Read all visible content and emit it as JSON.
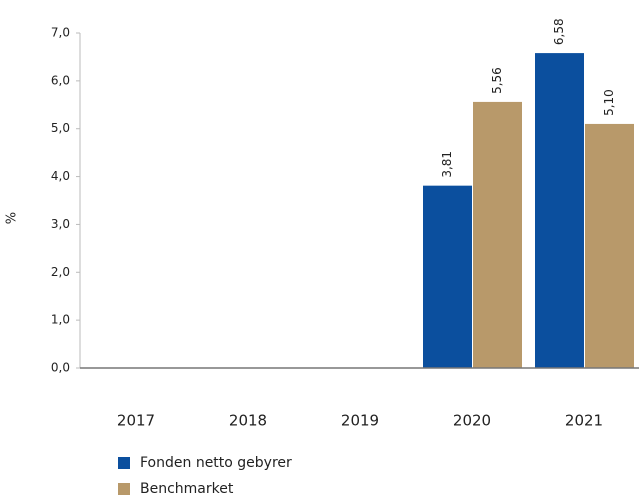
{
  "chart_data": {
    "type": "bar",
    "y_label": "%",
    "categories": [
      "2017",
      "2018",
      "2019",
      "2020",
      "2021"
    ],
    "series": [
      {
        "name": "Fonden netto gebyrer",
        "color": "#0b4f9e",
        "values": [
          null,
          null,
          null,
          3.81,
          6.58
        ],
        "value_labels": [
          null,
          null,
          null,
          "3,81",
          "6,58"
        ]
      },
      {
        "name": "Benchmarket",
        "color": "#b8996a",
        "values": [
          null,
          null,
          null,
          5.56,
          5.1
        ],
        "value_labels": [
          null,
          null,
          null,
          "5,56",
          "5,10"
        ]
      }
    ],
    "ylim": [
      0,
      7
    ],
    "yticks": [
      {
        "value": 0,
        "label": "0,0"
      },
      {
        "value": 1,
        "label": "1,0"
      },
      {
        "value": 2,
        "label": "2,0"
      },
      {
        "value": 3,
        "label": "3,0"
      },
      {
        "value": 4,
        "label": "4,0"
      },
      {
        "value": 5,
        "label": "5,0"
      },
      {
        "value": 6,
        "label": "6,0"
      },
      {
        "value": 7,
        "label": "7,0"
      }
    ],
    "legend": "bottom-left"
  }
}
